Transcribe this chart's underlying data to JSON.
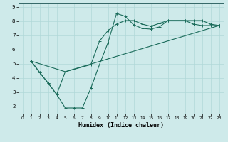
{
  "title": "",
  "xlabel": "Humidex (Indice chaleur)",
  "ylabel": "",
  "bg_color": "#ceeaea",
  "grid_color": "#b0d8d8",
  "line_color": "#1a6b5a",
  "xlim": [
    -0.5,
    23.5
  ],
  "ylim": [
    1.5,
    9.3
  ],
  "xticks": [
    0,
    1,
    2,
    3,
    4,
    5,
    6,
    7,
    8,
    9,
    10,
    11,
    12,
    13,
    14,
    15,
    16,
    17,
    18,
    19,
    20,
    21,
    22,
    23
  ],
  "yticks": [
    2,
    3,
    4,
    5,
    6,
    7,
    8,
    9
  ],
  "curve1_x": [
    1,
    2,
    3,
    4,
    5,
    6,
    7,
    8,
    9,
    10,
    11,
    12,
    13,
    14,
    15,
    16,
    17,
    18,
    19,
    20,
    21,
    22,
    23
  ],
  "curve1_y": [
    5.2,
    4.4,
    3.65,
    2.85,
    1.9,
    1.9,
    1.9,
    3.3,
    4.95,
    6.5,
    8.55,
    8.35,
    7.75,
    7.5,
    7.45,
    7.6,
    8.05,
    8.05,
    8.05,
    8.05,
    8.05,
    7.8,
    7.7
  ],
  "curve2_x": [
    1,
    2,
    3,
    4,
    5,
    8,
    9,
    10,
    11,
    12,
    13,
    14,
    15,
    16,
    17,
    18,
    19,
    20,
    21,
    22,
    23
  ],
  "curve2_y": [
    5.2,
    4.4,
    3.65,
    2.85,
    4.45,
    4.95,
    6.6,
    7.35,
    7.8,
    8.05,
    8.05,
    7.8,
    7.65,
    7.85,
    8.05,
    8.05,
    8.05,
    7.8,
    7.7,
    7.7,
    7.7
  ],
  "curve3_x": [
    1,
    5,
    23
  ],
  "curve3_y": [
    5.2,
    4.45,
    7.7
  ]
}
